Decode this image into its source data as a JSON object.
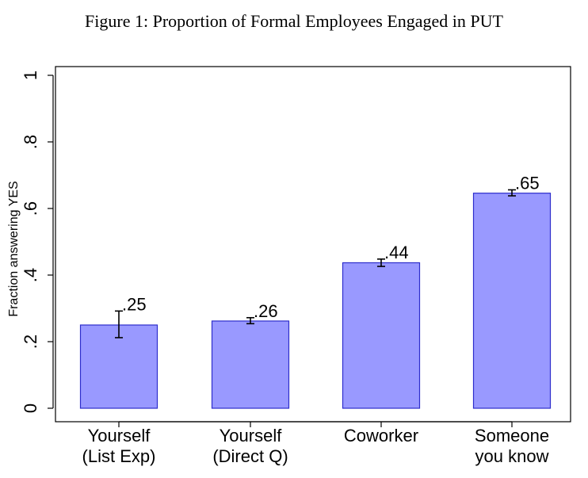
{
  "figure_caption": "Figure 1: Proportion of Formal Employees Engaged in PUT",
  "chart_data": {
    "type": "bar",
    "title": "",
    "xlabel": "",
    "ylabel": "Fraction answering YES",
    "categories": [
      [
        "Yourself",
        "(List Exp)"
      ],
      [
        "Yourself",
        "(Direct Q)"
      ],
      [
        "Coworker"
      ],
      [
        "Someone",
        "you know"
      ]
    ],
    "values": [
      0.25,
      0.262,
      0.437,
      0.646
    ],
    "value_labels": [
      ".25",
      ".26",
      ".44",
      ".65"
    ],
    "error_bars": [
      {
        "low": 0.212,
        "high": 0.292
      },
      {
        "low": 0.254,
        "high": 0.272
      },
      {
        "low": 0.426,
        "high": 0.448
      },
      {
        "low": 0.638,
        "high": 0.656
      }
    ],
    "ylim": [
      0,
      1
    ],
    "yticks": [
      0,
      0.2,
      0.4,
      0.6,
      0.8,
      1
    ],
    "ytick_labels": [
      "0",
      ".2",
      ".4",
      ".6",
      ".8",
      "1"
    ],
    "grid": false,
    "colors": {
      "bar_fill": "#9999ff",
      "bar_stroke": "#2d2dcc",
      "axis": "#000000",
      "error_bar": "#000000"
    }
  }
}
